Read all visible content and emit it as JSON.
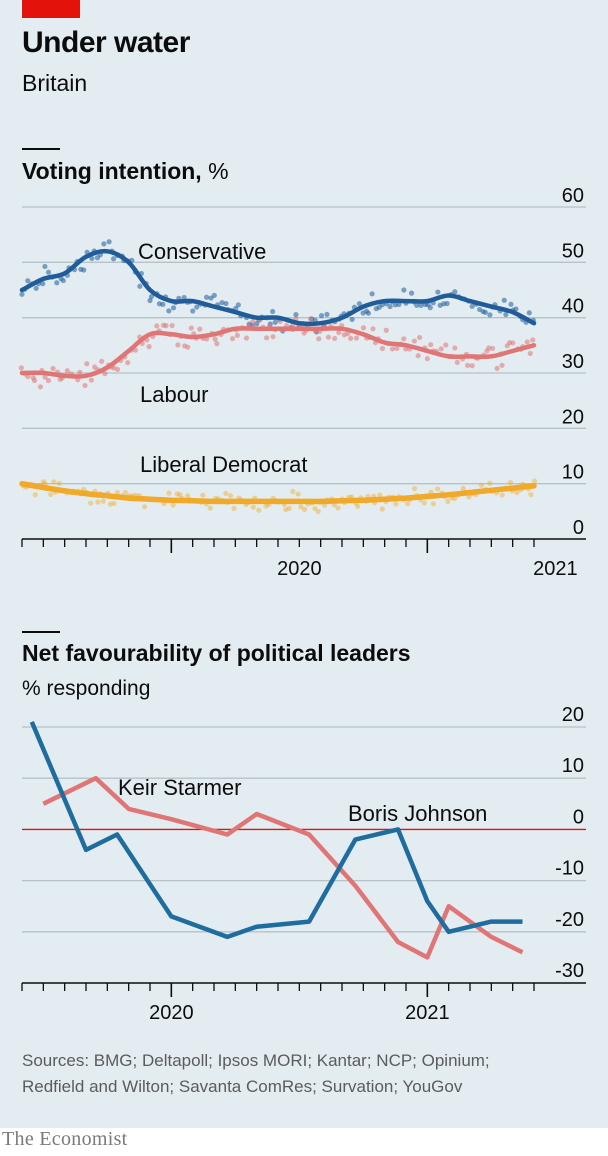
{
  "header": {
    "title": "Under water",
    "subtitle": "Britain"
  },
  "colors": {
    "conservative": "#1f5c99",
    "labour": "#e07575",
    "libdem": "#f0a929",
    "starmer": "#e07575",
    "johnson": "#1f6d9e",
    "zero_line": "#e3120b",
    "grid": "#b5c2c8",
    "axis": "#0c0c0c",
    "background": "#e3edf1"
  },
  "chart_data": [
    {
      "type": "line",
      "title": "Voting intention,",
      "unit": "%",
      "x_ticks": [
        "2020",
        "2021"
      ],
      "y_ticks": [
        "60",
        "50",
        "40",
        "30",
        "20",
        "10",
        "0"
      ],
      "ylim": [
        0,
        60
      ],
      "xlim": [
        "2019-06",
        "2021-06"
      ],
      "grid": true,
      "series": [
        {
          "name": "Conservative",
          "style": "trend+polls",
          "x": [
            "2019-06-01",
            "2019-07-01",
            "2019-08-01",
            "2019-09-01",
            "2019-10-01",
            "2019-11-01",
            "2019-12-01",
            "2020-01-01",
            "2020-02-01",
            "2020-03-01",
            "2020-04-01",
            "2020-05-01",
            "2020-06-01",
            "2020-07-01",
            "2020-08-01",
            "2020-09-01",
            "2020-10-01",
            "2020-11-01",
            "2020-12-01",
            "2021-01-01",
            "2021-02-01",
            "2021-03-01",
            "2021-04-01",
            "2021-05-01",
            "2021-06-01"
          ],
          "values": [
            45,
            47,
            48,
            51,
            52,
            50,
            45,
            43,
            43,
            42,
            41,
            40,
            40,
            39,
            39,
            40,
            42,
            43,
            43,
            43,
            44,
            43,
            42,
            41,
            39
          ]
        },
        {
          "name": "Labour",
          "style": "trend+polls",
          "x": [
            "2019-06-01",
            "2019-07-01",
            "2019-08-01",
            "2019-09-01",
            "2019-10-01",
            "2019-11-01",
            "2019-12-01",
            "2020-01-01",
            "2020-02-01",
            "2020-03-01",
            "2020-04-01",
            "2020-05-01",
            "2020-06-01",
            "2020-07-01",
            "2020-08-01",
            "2020-09-01",
            "2020-10-01",
            "2020-11-01",
            "2020-12-01",
            "2021-01-01",
            "2021-02-01",
            "2021-03-01",
            "2021-04-01",
            "2021-05-01",
            "2021-06-01"
          ],
          "values": [
            30,
            30,
            29.5,
            29.5,
            31,
            34,
            37,
            37,
            36.5,
            37,
            38,
            38,
            38,
            38,
            38,
            38,
            37,
            35.5,
            35,
            34,
            33,
            33,
            33,
            34,
            35
          ]
        },
        {
          "name": "Liberal Democrat",
          "style": "trend+polls",
          "x": [
            "2019-06-01",
            "2019-07-01",
            "2019-08-01",
            "2019-09-01",
            "2019-10-01",
            "2019-11-01",
            "2019-12-01",
            "2020-01-01",
            "2020-02-01",
            "2020-03-01",
            "2020-04-01",
            "2020-05-01",
            "2020-06-01",
            "2020-07-01",
            "2020-08-01",
            "2020-09-01",
            "2020-10-01",
            "2020-11-01",
            "2020-12-01",
            "2021-01-01",
            "2021-02-01",
            "2021-03-01",
            "2021-04-01",
            "2021-05-01",
            "2021-06-01"
          ],
          "values": [
            10,
            9.3,
            8.7,
            8.2,
            7.8,
            7.4,
            7.2,
            7.0,
            6.9,
            6.8,
            6.8,
            6.8,
            6.8,
            6.8,
            6.8,
            6.9,
            7.0,
            7.2,
            7.4,
            7.7,
            8.0,
            8.4,
            8.8,
            9.2,
            9.6
          ]
        }
      ]
    },
    {
      "type": "line",
      "title": "Net favourability of political leaders",
      "ylabel": "% responding",
      "x_ticks": [
        "2020",
        "2021"
      ],
      "y_ticks": [
        "20",
        "10",
        "0",
        "-10",
        "-20",
        "-30"
      ],
      "ylim": [
        -30,
        20
      ],
      "xlim": [
        "2019-06",
        "2021-06"
      ],
      "series": [
        {
          "name": "Keir Starmer",
          "x": [
            "2019-07-01",
            "2019-09-15",
            "2019-11-01",
            "2020-01-01",
            "2020-03-20",
            "2020-05-01",
            "2020-07-15",
            "2020-09-20",
            "2020-11-20",
            "2021-01-01",
            "2021-02-01",
            "2021-03-01",
            "2021-04-01",
            "2021-05-15"
          ],
          "values": [
            5,
            10,
            4,
            2,
            -1,
            3,
            -1,
            -11,
            -22,
            -25,
            -15,
            -18,
            -21,
            -24
          ]
        },
        {
          "name": "Boris Johnson",
          "x": [
            "2019-06-15",
            "2019-09-01",
            "2019-10-15",
            "2020-01-01",
            "2020-03-20",
            "2020-05-01",
            "2020-07-15",
            "2020-09-20",
            "2020-11-20",
            "2021-01-01",
            "2021-02-01",
            "2021-03-01",
            "2021-04-01",
            "2021-05-15"
          ],
          "values": [
            21,
            -4,
            -1,
            -17,
            -21,
            -19,
            -18,
            -2,
            0,
            -14,
            -20,
            -19,
            -18,
            -18
          ]
        }
      ]
    }
  ],
  "labels": {
    "conservative": "Conservative",
    "labour": "Labour",
    "libdem": "Liberal Democrat",
    "starmer": "Keir Starmer",
    "johnson": "Boris Johnson"
  },
  "footer": {
    "sources_line1": "Sources: BMG; Deltapoll; Ipsos MORI; Kantar; NCP; Opinium;",
    "sources_line2": "Redfield and Wilton; Savanta ComRes; Survation; YouGov",
    "brand": "The Economist"
  }
}
